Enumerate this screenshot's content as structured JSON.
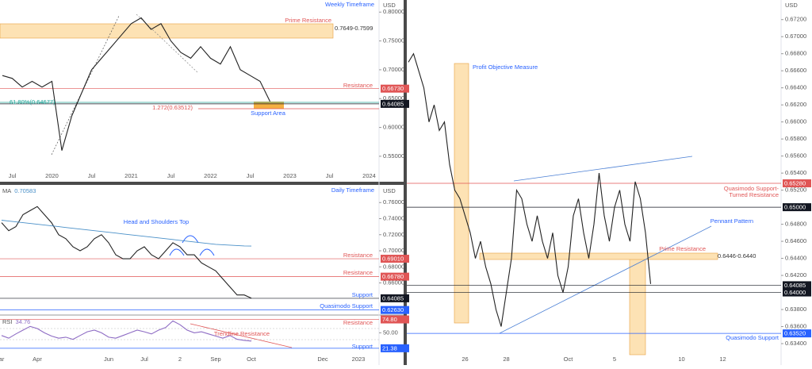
{
  "chart_data": [
    {
      "type": "line",
      "title": "Weekly Timeframe",
      "y_axis_label": "USD",
      "categories": [
        null,
        "Jul",
        null,
        null,
        null,
        "2020",
        null,
        null,
        null,
        "Jul",
        null,
        null,
        null,
        "2021",
        null,
        null,
        null,
        "Jul",
        null,
        null,
        null,
        "2022",
        null,
        null,
        null,
        "Jul",
        null,
        null,
        null,
        "2023",
        null,
        null,
        null,
        "Jul",
        null,
        null,
        null,
        "2024"
      ],
      "series": [
        {
          "color": "#222222",
          "values": [
            0.69,
            0.685,
            0.67,
            0.68,
            0.67,
            0.68,
            0.56,
            0.62,
            0.66,
            0.7,
            0.72,
            0.74,
            0.76,
            0.78,
            0.79,
            0.77,
            0.78,
            0.75,
            0.73,
            0.72,
            0.74,
            0.72,
            0.71,
            0.74,
            0.7,
            0.69,
            0.68,
            0.645,
            null,
            null,
            null,
            null,
            null,
            null,
            null,
            null,
            null,
            null
          ]
        }
      ],
      "ylim": [
        0.532,
        0.821
      ],
      "yticks": [
        {
          "value": 0.8,
          "label": "0.80000"
        },
        {
          "value": 0.75,
          "label": "0.75000"
        },
        {
          "value": 0.7,
          "label": "0.70000"
        },
        {
          "value": 0.65,
          "label": "0.65000"
        },
        {
          "value": 0.6,
          "label": "0.60000"
        },
        {
          "value": 0.55,
          "label": "0.55000"
        }
      ],
      "levels": [
        {
          "value": 0.6673,
          "label": "0.66730",
          "color": "#e05555"
        },
        {
          "value": 0.64085,
          "label": "0.64085",
          "color": "#131722"
        }
      ],
      "annotations": [
        "Prime Resistance",
        "0.7649-0.7599",
        "Resistance",
        "61.80%(0.64677)",
        "1.272(0.63512)",
        "Support Area"
      ]
    },
    {
      "type": "line",
      "title": "Daily Timeframe",
      "y_axis_label": "USD",
      "categories": [
        "ar",
        null,
        null,
        null,
        null,
        "Apr",
        null,
        null,
        null,
        null,
        null,
        null,
        null,
        null,
        null,
        "Jun",
        null,
        null,
        null,
        null,
        "Jul",
        null,
        null,
        null,
        null,
        "2",
        null,
        null,
        null,
        null,
        "Sep",
        null,
        null,
        null,
        null,
        "Oct",
        null,
        null,
        null,
        null,
        null,
        null,
        null,
        null,
        null,
        "Dec",
        null,
        null,
        null,
        null,
        "2023",
        null,
        null
      ],
      "series": [
        {
          "color": "#222222",
          "values": [
            0.735,
            0.725,
            0.73,
            0.745,
            0.75,
            0.755,
            0.745,
            0.735,
            0.72,
            0.715,
            0.705,
            0.7,
            0.705,
            0.715,
            0.72,
            0.71,
            0.695,
            0.69,
            0.69,
            0.7,
            0.705,
            0.695,
            0.69,
            0.7,
            0.71,
            0.705,
            0.695,
            0.695,
            0.685,
            0.68,
            0.675,
            0.665,
            0.655,
            0.645,
            0.645,
            0.641,
            null,
            null,
            null,
            null,
            null,
            null,
            null,
            null,
            null,
            null,
            null,
            null,
            null,
            null,
            null,
            null,
            null
          ]
        },
        {
          "name": "MA",
          "color": "#4a90c8",
          "values": [
            0.738,
            0.737,
            0.736,
            0.735,
            0.734,
            0.733,
            0.732,
            0.731,
            0.73,
            0.729,
            0.728,
            0.727,
            0.726,
            0.725,
            0.724,
            0.723,
            0.722,
            0.721,
            0.72,
            0.719,
            0.718,
            0.717,
            0.716,
            0.715,
            0.714,
            0.713,
            0.712,
            0.711,
            0.71,
            0.709,
            0.708,
            0.7075,
            0.707,
            0.7065,
            0.706,
            0.70583,
            null,
            null,
            null,
            null,
            null,
            null,
            null,
            null,
            null,
            null,
            null,
            null,
            null,
            null,
            null,
            null,
            null
          ]
        }
      ],
      "ylim": [
        0.622,
        0.781
      ],
      "yticks": [
        {
          "value": 0.76,
          "label": "0.76000"
        },
        {
          "value": 0.74,
          "label": "0.74000"
        },
        {
          "value": 0.72,
          "label": "0.72000"
        },
        {
          "value": 0.7,
          "label": "0.70000"
        },
        {
          "value": 0.68,
          "label": "0.68000"
        },
        {
          "value": 0.66,
          "label": "0.66000"
        }
      ],
      "levels": [
        {
          "value": 0.6901,
          "label": "0.69010",
          "color": "#e05555"
        },
        {
          "value": 0.6678,
          "label": "0.66780",
          "color": "#e05555"
        },
        {
          "value": 0.64085,
          "label": "0.64085",
          "color": "#131722"
        },
        {
          "value": 0.6263,
          "label": "0.62630",
          "color": "#2962ff"
        }
      ],
      "annotations": [
        "Head and Shoulders Top",
        "Resistance",
        "Resistance",
        "Support",
        "Quasimodo Support"
      ]
    },
    {
      "type": "line",
      "series": [
        {
          "name": "RSI",
          "color": "#8e6cc4",
          "values": [
            45,
            40,
            48,
            55,
            62,
            58,
            50,
            44,
            40,
            42,
            38,
            45,
            52,
            55,
            50,
            42,
            40,
            45,
            50,
            55,
            52,
            48,
            55,
            60,
            72,
            65,
            55,
            50,
            52,
            48,
            44,
            40,
            45,
            38,
            36,
            34.76
          ]
        }
      ],
      "ylim": [
        8,
        80
      ],
      "yticks": [
        {
          "value": 50,
          "label": "50.00"
        }
      ],
      "levels": [
        {
          "value": 74.8,
          "label": "74.80",
          "color": "#e05555"
        },
        {
          "value": 21.38,
          "label": "21.38",
          "color": "#2962ff"
        }
      ],
      "annotations": [
        "Trendline Resistance",
        "Resistance",
        "Support"
      ]
    },
    {
      "type": "line",
      "y_axis_label": "USD",
      "categories": [
        null,
        null,
        null,
        null,
        null,
        null,
        null,
        null,
        null,
        null,
        null,
        "26",
        null,
        null,
        null,
        null,
        null,
        null,
        null,
        "28",
        null,
        null,
        null,
        null,
        null,
        null,
        null,
        null,
        null,
        null,
        null,
        "Oct",
        null,
        null,
        null,
        null,
        null,
        null,
        null,
        null,
        "5",
        null,
        null,
        null,
        null,
        null,
        null,
        null,
        null,
        null,
        null,
        null,
        null,
        "10",
        null,
        null,
        null,
        null,
        null,
        null,
        null,
        "12",
        null,
        null,
        null,
        null,
        null,
        null,
        null,
        null,
        null,
        null,
        null
      ],
      "series": [
        {
          "color": "#222222",
          "values": [
            0.667,
            0.668,
            0.666,
            0.664,
            0.66,
            0.662,
            0.659,
            0.66,
            0.655,
            0.652,
            0.651,
            0.649,
            0.647,
            0.644,
            0.646,
            0.643,
            0.641,
            0.638,
            0.636,
            0.64,
            0.644,
            0.652,
            0.651,
            0.648,
            0.646,
            0.649,
            0.646,
            0.644,
            0.647,
            0.642,
            0.64,
            0.643,
            0.649,
            0.651,
            0.647,
            0.644,
            0.648,
            0.654,
            0.649,
            0.646,
            0.65,
            0.652,
            0.648,
            0.646,
            0.653,
            0.651,
            0.647,
            0.641,
            null,
            null,
            null,
            null,
            null,
            null,
            null,
            null,
            null,
            null,
            null,
            null,
            null,
            null,
            null,
            null,
            null,
            null,
            null,
            null,
            null,
            null,
            null,
            null,
            null
          ]
        }
      ],
      "ylim": [
        0.6327,
        0.6743
      ],
      "yticks": [
        {
          "value": 0.672,
          "label": "0.67200"
        },
        {
          "value": 0.67,
          "label": "0.67000"
        },
        {
          "value": 0.668,
          "label": "0.66800"
        },
        {
          "value": 0.666,
          "label": "0.66600"
        },
        {
          "value": 0.664,
          "label": "0.66400"
        },
        {
          "value": 0.662,
          "label": "0.66200"
        },
        {
          "value": 0.66,
          "label": "0.66000"
        },
        {
          "value": 0.658,
          "label": "0.65800"
        },
        {
          "value": 0.656,
          "label": "0.65600"
        },
        {
          "value": 0.654,
          "label": "0.65400"
        },
        {
          "value": 0.652,
          "label": "0.65200"
        },
        {
          "value": 0.648,
          "label": "0.64800"
        },
        {
          "value": 0.646,
          "label": "0.64600"
        },
        {
          "value": 0.644,
          "label": "0.64400"
        },
        {
          "value": 0.642,
          "label": "0.64200"
        },
        {
          "value": 0.638,
          "label": "0.63800"
        },
        {
          "value": 0.636,
          "label": "0.63600"
        },
        {
          "value": 0.634,
          "label": "0.63400"
        }
      ],
      "levels": [
        {
          "value": 0.6528,
          "label": "0.65280",
          "color": "#e05555"
        },
        {
          "value": 0.65,
          "label": "0.65000",
          "color": "#131722"
        },
        {
          "value": 0.64085,
          "label": "0.64085",
          "color": "#131722"
        },
        {
          "value": 0.64,
          "label": "0.64000",
          "color": "#131722"
        },
        {
          "value": 0.6352,
          "label": "0.63520",
          "color": "#2962ff"
        }
      ],
      "annotations": [
        "Profit Objective Measure",
        "Quasimodo Support-",
        "Turned Resistance",
        "Pennant Pattern",
        "Prime Resistance",
        "0.6446-0.6440",
        "Quasimodo Support"
      ]
    }
  ]
}
